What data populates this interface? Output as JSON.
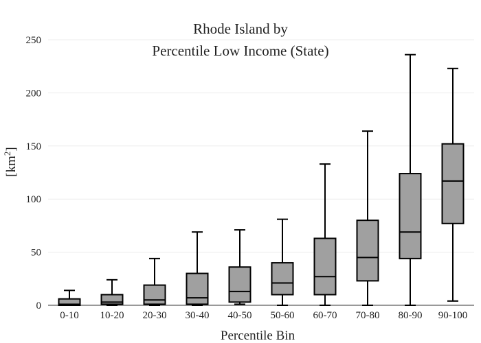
{
  "chart_data": {
    "type": "box",
    "title_lines": [
      "Rhode Island  by",
      "Percentile Low Income (State)"
    ],
    "xlabel": "Percentile Bin",
    "ylabel": "[km",
    "ylabel_sup": "2",
    "ylabel_end": "]",
    "ylim": [
      0,
      250
    ],
    "yticks": [
      0,
      50,
      100,
      150,
      200,
      250
    ],
    "grid": true,
    "box_color": "#a0a0a0",
    "line_color": "#000000",
    "categories": [
      "0-10",
      "10-20",
      "20-30",
      "30-40",
      "40-50",
      "50-60",
      "60-70",
      "70-80",
      "80-90",
      "90-100"
    ],
    "boxes": [
      {
        "category": "0-10",
        "min": 0,
        "q1": 0,
        "median": 1,
        "q3": 6,
        "max": 14
      },
      {
        "category": "10-20",
        "min": 0,
        "q1": 1,
        "median": 3,
        "q3": 10,
        "max": 24
      },
      {
        "category": "20-30",
        "min": 0,
        "q1": 1,
        "median": 5,
        "q3": 19,
        "max": 44
      },
      {
        "category": "30-40",
        "min": 0,
        "q1": 1,
        "median": 7,
        "q3": 30,
        "max": 69
      },
      {
        "category": "40-50",
        "min": 1,
        "q1": 3,
        "median": 13,
        "q3": 36,
        "max": 71
      },
      {
        "category": "50-60",
        "min": 0,
        "q1": 10,
        "median": 21,
        "q3": 40,
        "max": 81
      },
      {
        "category": "60-70",
        "min": 0,
        "q1": 10,
        "median": 27,
        "q3": 63,
        "max": 133
      },
      {
        "category": "70-80",
        "min": 0,
        "q1": 23,
        "median": 45,
        "q3": 80,
        "max": 164
      },
      {
        "category": "80-90",
        "min": 0,
        "q1": 44,
        "median": 69,
        "q3": 124,
        "max": 236
      },
      {
        "category": "90-100",
        "min": 4,
        "q1": 77,
        "median": 117,
        "q3": 152,
        "max": 223
      }
    ]
  }
}
